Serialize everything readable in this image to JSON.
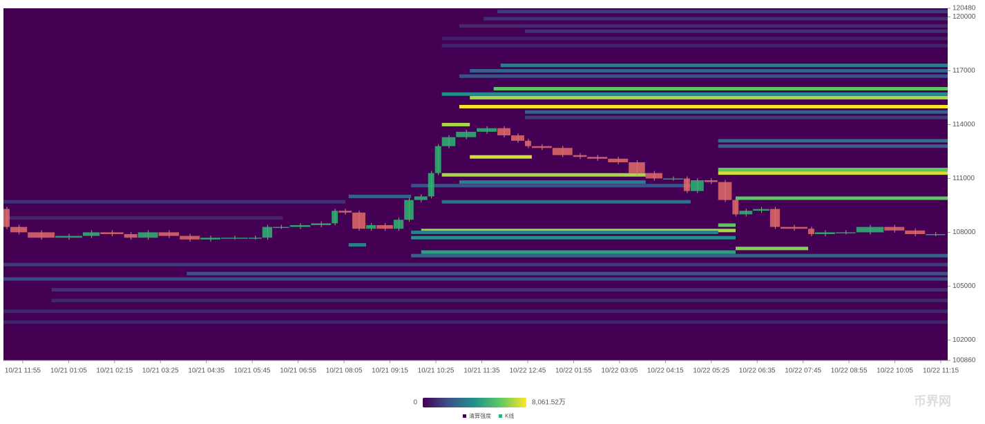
{
  "chart_data": {
    "type": "heatmap",
    "categories": [
      "10/21 11:55",
      "10/21 01:05",
      "10/21 02:15",
      "10/21 03:25",
      "10/21 04:35",
      "10/21 05:45",
      "10/21 06:55",
      "10/21 08:05",
      "10/21 09:15",
      "10/21 10:25",
      "10/21 11:35",
      "10/22 12:45",
      "10/22 01:55",
      "10/22 03:05",
      "10/22 04:15",
      "10/22 05:25",
      "10/22 06:35",
      "10/22 07:45",
      "10/22 08:55",
      "10/22 10:05",
      "10/22 11:15"
    ],
    "xlim": [
      -0.42,
      20.15
    ],
    "ylim": [
      100860,
      120480
    ],
    "yticks": [
      100860,
      102000,
      105000,
      108000,
      111000,
      114000,
      117000,
      120000,
      120480
    ],
    "colorscale": [
      "#440154",
      "#3b528b",
      "#21918c",
      "#5ec962",
      "#fde725"
    ],
    "colorbar": {
      "min": 0,
      "max": 8061.52,
      "max_label": "8,061.52万"
    },
    "bands": {
      "price": [
        120300,
        119900,
        119500,
        119200,
        118800,
        118400,
        117300,
        117000,
        116700,
        116000,
        115700,
        115500,
        115000,
        114700,
        114400,
        114000,
        113100,
        112800,
        112200,
        111500,
        111300,
        111200,
        110800,
        110600,
        110000,
        109900,
        109700,
        108400,
        108100,
        108000,
        107700,
        107300,
        107100,
        106900,
        106700,
        106200,
        105700,
        105400,
        104800,
        104200,
        103600,
        103000,
        108800,
        109700
      ],
      "start": [
        10.34,
        10.04,
        9.51,
        10.94,
        9.13,
        9.13,
        10.41,
        9.74,
        9.51,
        10.26,
        9.13,
        9.74,
        9.51,
        10.94,
        10.94,
        9.13,
        15.15,
        15.15,
        9.74,
        15.15,
        15.15,
        9.13,
        9.51,
        8.46,
        7.1,
        15.53,
        9.13,
        15.15,
        8.68,
        8.46,
        8.46,
        7.1,
        15.53,
        8.68,
        8.46,
        -0.42,
        3.57,
        -0.42,
        0.63,
        0.63,
        -0.42,
        -0.42,
        -0.42,
        -0.42
      ],
      "end": [
        20.15,
        20.15,
        20.15,
        20.15,
        20.15,
        20.15,
        20.15,
        20.15,
        20.15,
        20.15,
        20.15,
        20.15,
        20.15,
        20.15,
        20.15,
        9.74,
        20.15,
        20.15,
        11.09,
        20.15,
        20.15,
        13.57,
        13.57,
        14.55,
        8.46,
        20.15,
        14.55,
        15.53,
        15.53,
        15.15,
        15.53,
        7.48,
        17.11,
        15.53,
        20.15,
        20.15,
        20.15,
        20.15,
        20.15,
        20.15,
        20.15,
        20.15,
        5.67,
        7.03
      ],
      "values": [
        1500,
        1200,
        1000,
        1200,
        800,
        900,
        3500,
        2500,
        2000,
        6000,
        4000,
        7000,
        8000,
        2500,
        1500,
        7000,
        3000,
        2500,
        7500,
        6000,
        7500,
        7000,
        3500,
        2000,
        2500,
        6000,
        3000,
        6000,
        7000,
        3500,
        4000,
        3500,
        6500,
        4500,
        2500,
        1500,
        2000,
        1800,
        1200,
        1000,
        1000,
        900,
        900,
        1200
      ]
    },
    "series": [
      {
        "name": "K线",
        "color": "#2bb673",
        "x": [
          -0.42,
          -0.27,
          0.11,
          0.71,
          1.31,
          1.69,
          2.21,
          2.51,
          2.96,
          3.42,
          3.87,
          4.32,
          4.92,
          5.22,
          5.45,
          5.82,
          6.28,
          6.73,
          6.88,
          7.18,
          7.48,
          7.71,
          8.08,
          8.31,
          8.53,
          8.83,
          8.98,
          9.13,
          9.44,
          9.89,
          10.34,
          10.64,
          10.94,
          11.09,
          11.54,
          11.99,
          12.3,
          12.75,
          13.2,
          13.57,
          13.95,
          14.4,
          14.55,
          14.85,
          15.15,
          15.46,
          15.61,
          15.91,
          16.28,
          16.51,
          17.11,
          17.26,
          17.71,
          18.16,
          18.77,
          19.22,
          19.67,
          20.11
        ],
        "values": [
          109300,
          108300,
          108000,
          107700,
          107800,
          108000,
          107900,
          107700,
          108000,
          107800,
          107600,
          107700,
          107700,
          107700,
          108300,
          108300,
          108400,
          108500,
          109200,
          109100,
          108200,
          108400,
          108200,
          108700,
          109800,
          110000,
          111300,
          112800,
          113300,
          113600,
          113800,
          113400,
          113100,
          112800,
          112700,
          112300,
          112200,
          112100,
          111900,
          111300,
          111000,
          111000,
          110300,
          110900,
          110800,
          109800,
          109000,
          109200,
          109300,
          108300,
          108200,
          107900,
          108000,
          108000,
          108300,
          108100,
          107900,
          107900
        ]
      }
    ],
    "legend": [
      {
        "name": "清算强度",
        "color": "#440154"
      },
      {
        "name": "K线",
        "color": "#2bb673"
      }
    ],
    "watermark": "币界网"
  }
}
